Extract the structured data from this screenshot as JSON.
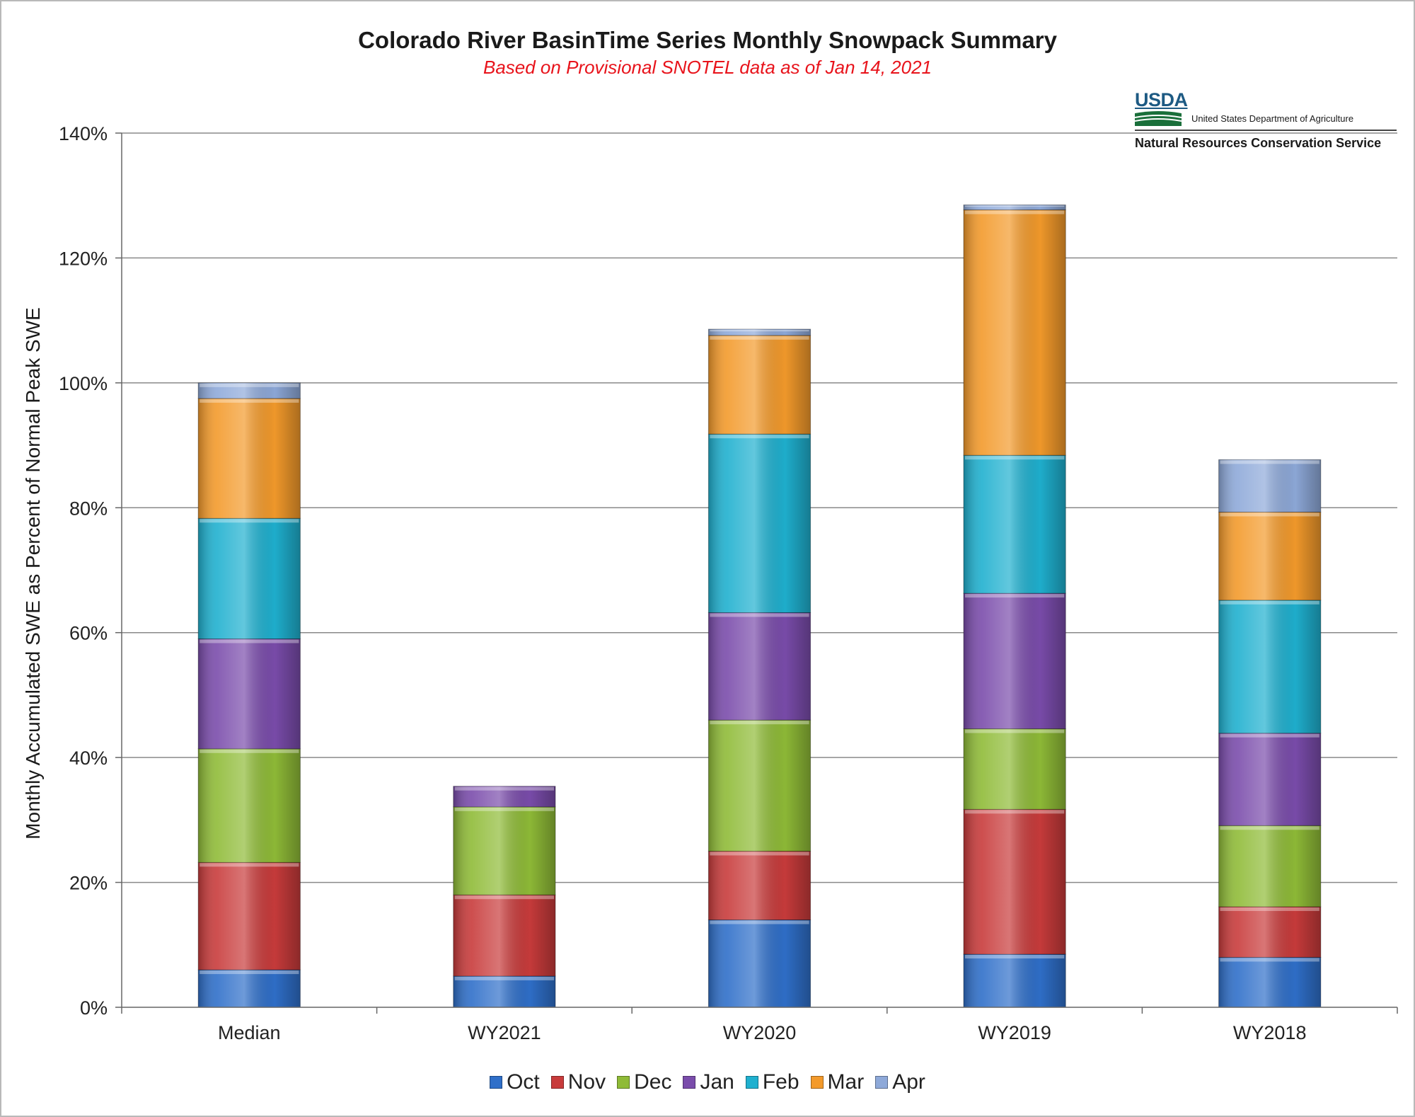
{
  "title": "Colorado River BasinTime Series Monthly Snowpack Summary",
  "subtitle": "Based on Provisional SNOTEL data as of Jan 14, 2021",
  "logo": {
    "mark": "USDA",
    "department": "United States Department of Agriculture",
    "agency": "Natural Resources Conservation Service"
  },
  "chart_data": {
    "type": "bar",
    "stacked": true,
    "ylabel": "Monthly Accumulated SWE as Percent of Normal Peak SWE",
    "xlabel": "",
    "ylim": [
      0,
      140
    ],
    "yticks": [
      "0%",
      "20%",
      "40%",
      "60%",
      "80%",
      "100%",
      "120%",
      "140%"
    ],
    "grid": true,
    "legend_position": "bottom",
    "categories": [
      "Median",
      "WY2021",
      "WY2020",
      "WY2019",
      "WY2018"
    ],
    "series": [
      {
        "name": "Oct",
        "color": "#2f6fc9",
        "values": [
          6,
          5,
          14,
          8.5,
          8
        ]
      },
      {
        "name": "Nov",
        "color": "#c83b3b",
        "values": [
          17.2,
          13,
          11,
          23.2,
          8.1
        ]
      },
      {
        "name": "Dec",
        "color": "#8fbb37",
        "values": [
          18.2,
          14.1,
          21,
          12.9,
          13
        ]
      },
      {
        "name": "Jan",
        "color": "#7a4cab",
        "values": [
          17.6,
          3.3,
          17.2,
          21.7,
          14.8
        ]
      },
      {
        "name": "Feb",
        "color": "#1fb0cf",
        "values": [
          19.3,
          0,
          28.6,
          22.1,
          21.3
        ]
      },
      {
        "name": "Mar",
        "color": "#f39a2b",
        "values": [
          19.2,
          0,
          15.8,
          39.3,
          14.1
        ]
      },
      {
        "name": "Apr",
        "color": "#8ea9d9",
        "values": [
          2.5,
          0,
          1.0,
          0.8,
          8.4
        ]
      }
    ]
  }
}
